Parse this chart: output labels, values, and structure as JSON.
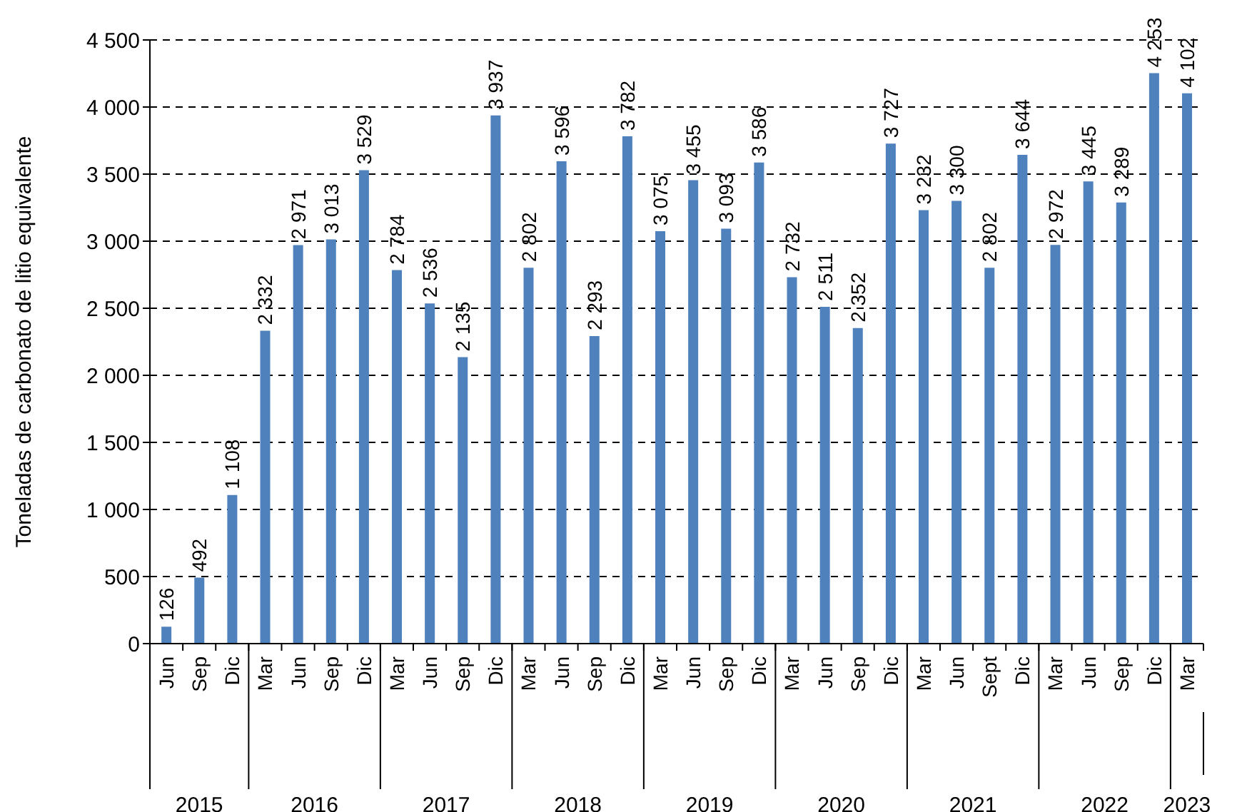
{
  "chart_data": {
    "type": "bar",
    "ylabel": "Toneladas de carbonato de litio equivalente",
    "categories": [
      "Jun",
      "Sep",
      "Dic",
      "Mar",
      "Jun",
      "Sep",
      "Dic",
      "Mar",
      "Jun",
      "Sep",
      "Dic",
      "Mar",
      "Jun",
      "Sep",
      "Dic",
      "Mar",
      "Jun",
      "Sep",
      "Dic",
      "Mar",
      "Jun",
      "Sep",
      "Dic",
      "Mar",
      "Jun",
      "Sept",
      "Dic",
      "Mar",
      "Jun",
      "Sep",
      "Dic",
      "Mar"
    ],
    "values": [
      126,
      492,
      1108,
      2332,
      2971,
      3013,
      3529,
      2784,
      2536,
      2135,
      3937,
      2802,
      3596,
      2293,
      3782,
      3075,
      3455,
      3093,
      3586,
      2732,
      2511,
      2352,
      3727,
      3232,
      3300,
      2802,
      3644,
      2972,
      3445,
      3289,
      4253,
      4102
    ],
    "value_labels": [
      "126",
      "492",
      "1 108",
      "2 332",
      "2 971",
      "3 013",
      "3 529",
      "2 784",
      "2 536",
      "2 135",
      "3 937",
      "2 802",
      "3 596",
      "2 293",
      "3 782",
      "3 075",
      "3 455",
      "3 093",
      "3 586",
      "2 732",
      "2 511",
      "2 352",
      "3 727",
      "3 232",
      "3 300",
      "2 802",
      "3 644",
      "2 972",
      "3 445",
      "3 289",
      "4 253",
      "4 102"
    ],
    "color": "#4f81bd",
    "ylim": [
      0,
      4500
    ],
    "yticks": [
      0,
      500,
      {
        "value": 1000,
        "label": "1 000"
      },
      {
        "value": 1500,
        "label": "1 500"
      },
      {
        "value": 2000,
        "label": "2 000"
      },
      {
        "value": 2500,
        "label": "2 500"
      },
      {
        "value": 3000,
        "label": "3 000"
      },
      {
        "value": 3500,
        "label": "3 500"
      },
      {
        "value": 4000,
        "label": "4 000"
      },
      {
        "value": 4500,
        "label": "4 500"
      }
    ],
    "grid": "y",
    "annotations": [
      "2015",
      "2016",
      "2017",
      "2018",
      "2019",
      "2020",
      "2021",
      "2022",
      "2023"
    ]
  }
}
